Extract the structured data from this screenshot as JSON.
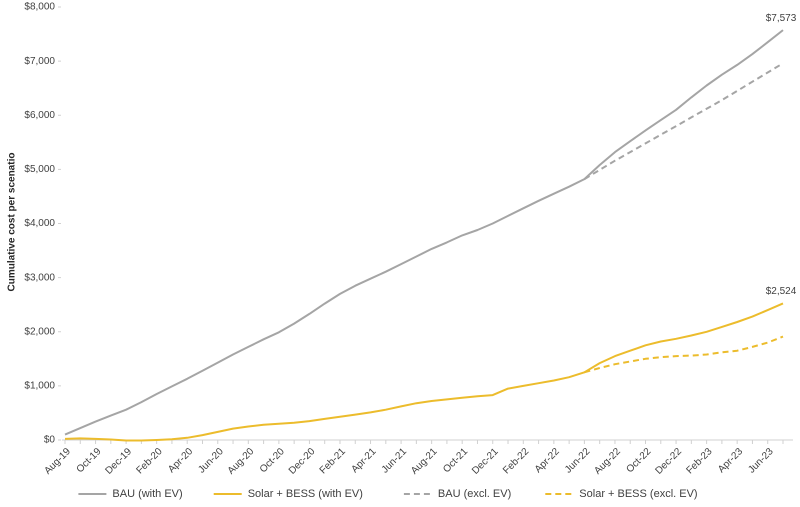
{
  "chart_data": {
    "type": "line",
    "y_axis_label": "Cumulative cost per scenatio",
    "categories": [
      "Aug-19",
      null,
      "Oct-19",
      null,
      "Dec-19",
      null,
      "Feb-20",
      null,
      "Apr-20",
      null,
      "Jun-20",
      null,
      "Aug-20",
      null,
      "Oct-20",
      null,
      "Dec-20",
      null,
      "Feb-21",
      null,
      "Apr-21",
      null,
      "Jun-21",
      null,
      "Aug-21",
      null,
      "Oct-21",
      null,
      "Dec-21",
      null,
      "Feb-22",
      null,
      "Apr-22",
      null,
      "Jun-22",
      null,
      "Aug-22",
      null,
      "Oct-22",
      null,
      "Dec-22",
      null,
      "Feb-23",
      null,
      "Apr-23",
      null,
      "Jun-23",
      null
    ],
    "series": [
      {
        "name": "BAU (with EV)",
        "color": "#a5a5a5",
        "dashed": false,
        "values": [
          100,
          220,
          340,
          450,
          560,
          700,
          850,
          990,
          1130,
          1280,
          1430,
          1580,
          1720,
          1860,
          1990,
          2150,
          2330,
          2520,
          2700,
          2850,
          2980,
          3110,
          3250,
          3390,
          3530,
          3650,
          3780,
          3880,
          4000,
          4140,
          4280,
          4420,
          4550,
          4680,
          4820,
          5080,
          5320,
          5520,
          5720,
          5910,
          6100,
          6330,
          6550,
          6750,
          6930,
          7130,
          7350,
          7573
        ],
        "value_labels": [
          null,
          null,
          null,
          null,
          null,
          null,
          null,
          null,
          null,
          null,
          null,
          null,
          null,
          null,
          null,
          null,
          null,
          null,
          null,
          null,
          null,
          null,
          null,
          null,
          null,
          null,
          null,
          null,
          null,
          null,
          null,
          null,
          null,
          null,
          null,
          null,
          null,
          null,
          null,
          null,
          null,
          null,
          null,
          null,
          null,
          null,
          null,
          "$7,573"
        ]
      },
      {
        "name": "Solar + BESS (with EV)",
        "color": "#ecbc2c",
        "dashed": false,
        "values": [
          20,
          30,
          20,
          10,
          -10,
          -10,
          0,
          15,
          40,
          90,
          150,
          210,
          250,
          280,
          300,
          320,
          350,
          390,
          430,
          470,
          510,
          560,
          620,
          680,
          720,
          750,
          780,
          810,
          830,
          950,
          1000,
          1050,
          1100,
          1160,
          1250,
          1420,
          1550,
          1650,
          1750,
          1820,
          1870,
          1930,
          2000,
          2090,
          2180,
          2280,
          2400,
          2524
        ],
        "value_labels": [
          null,
          null,
          null,
          null,
          null,
          null,
          null,
          null,
          null,
          null,
          null,
          null,
          null,
          null,
          null,
          null,
          null,
          null,
          null,
          null,
          null,
          null,
          null,
          null,
          null,
          null,
          null,
          null,
          null,
          null,
          null,
          null,
          null,
          null,
          null,
          null,
          null,
          null,
          null,
          null,
          null,
          null,
          null,
          null,
          null,
          null,
          null,
          "$2,524"
        ]
      },
      {
        "name": "BAU (excl. EV)",
        "color": "#a5a5a5",
        "dashed": true,
        "values": [
          null,
          null,
          null,
          null,
          null,
          null,
          null,
          null,
          null,
          null,
          null,
          null,
          null,
          null,
          null,
          null,
          null,
          null,
          null,
          null,
          null,
          null,
          null,
          null,
          null,
          null,
          null,
          null,
          null,
          null,
          null,
          null,
          null,
          null,
          4820,
          4990,
          5160,
          5320,
          5480,
          5640,
          5800,
          5960,
          6120,
          6280,
          6450,
          6620,
          6790,
          6960
        ]
      },
      {
        "name": "Solar + BESS (excl. EV)",
        "color": "#ecbc2c",
        "dashed": true,
        "values": [
          null,
          null,
          null,
          null,
          null,
          null,
          null,
          null,
          null,
          null,
          null,
          null,
          null,
          null,
          null,
          null,
          null,
          null,
          null,
          null,
          null,
          null,
          null,
          null,
          null,
          null,
          null,
          null,
          null,
          null,
          null,
          null,
          null,
          null,
          1250,
          1330,
          1400,
          1450,
          1500,
          1530,
          1550,
          1560,
          1580,
          1620,
          1650,
          1720,
          1800,
          1910
        ]
      }
    ],
    "ylim": [
      0,
      8000
    ],
    "yticks": [
      {
        "value": 0,
        "label": "$0"
      },
      {
        "value": 1000,
        "label": "$1,000"
      },
      {
        "value": 2000,
        "label": "$2,000"
      },
      {
        "value": 3000,
        "label": "$3,000"
      },
      {
        "value": 4000,
        "label": "$4,000"
      },
      {
        "value": 5000,
        "label": "$5,000"
      },
      {
        "value": 6000,
        "label": "$6,000"
      },
      {
        "value": 7000,
        "label": "$7,000"
      },
      {
        "value": 8000,
        "label": "$8,000"
      }
    ],
    "grid": false,
    "legend": "bottom"
  }
}
